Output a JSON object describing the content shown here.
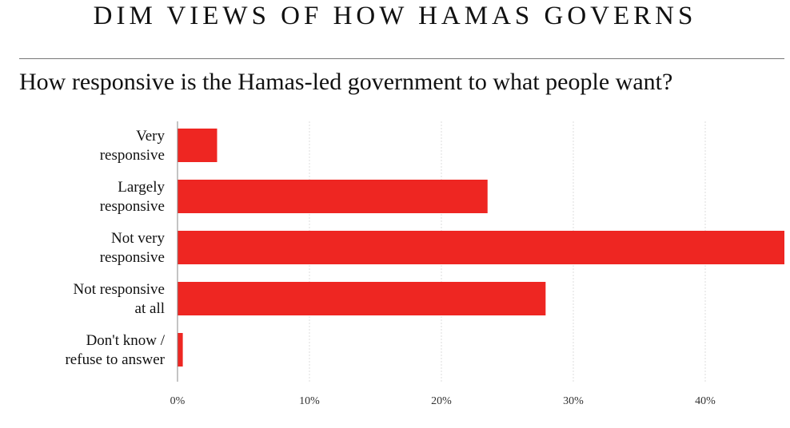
{
  "header": {
    "title": "DIM VIEWS OF HOW HAMAS GOVERNS",
    "subtitle": "How responsive is the Hamas-led government to what people want?"
  },
  "colors": {
    "bar": "#ee2622",
    "grid": "#dddddd",
    "axis": "#888888"
  },
  "chart_data": {
    "type": "bar",
    "orientation": "horizontal",
    "title": "How responsive is the Hamas-led government to what people want?",
    "categories": [
      [
        "Very",
        "responsive"
      ],
      [
        "Largely",
        "responsive"
      ],
      [
        "Not very",
        "responsive"
      ],
      [
        "Not responsive",
        "at all"
      ],
      [
        "Don't know /",
        "refuse to answer"
      ]
    ],
    "values": [
      3.0,
      23.5,
      46.0,
      27.9,
      0.4
    ],
    "xlim": [
      0,
      46
    ],
    "xticks": [
      0,
      10,
      20,
      30,
      40
    ],
    "xtick_labels": [
      "0%",
      "10%",
      "20%",
      "30%",
      "40%"
    ],
    "grid": true,
    "xlabel": "",
    "ylabel": ""
  }
}
